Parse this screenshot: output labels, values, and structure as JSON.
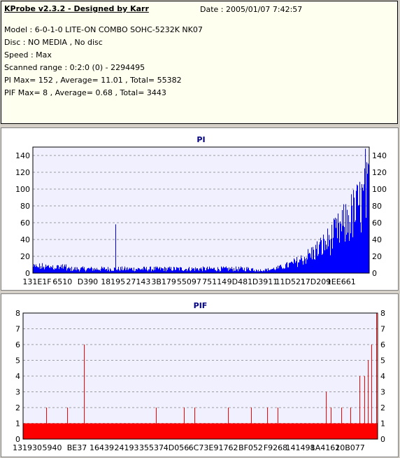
{
  "header": {
    "title": "KProbe v2.3.2 - Designed by Karr",
    "date": "Date : 2005/01/07 7:42:57",
    "lines": [
      "Model : 6-0-1-0 LITE-ON COMBO SOHC-5232K NK07",
      "Disc : NO MEDIA , No disc",
      "Speed : Max",
      "Scanned range : 0:2:0 (0) - 2294495",
      "PI Max= 152 , Average= 11.01 , Total= 55382",
      "PIF Max= 8 , Average= 0.68 , Total= 3443"
    ]
  },
  "chart_data": [
    {
      "type": "bar",
      "title": "PI",
      "ylim": [
        0,
        150
      ],
      "yticks": [
        0,
        20,
        40,
        60,
        80,
        100,
        120,
        140
      ],
      "xticks": [
        "131E1F",
        "6510",
        "D390",
        "18195",
        "27143",
        "3B179",
        "55097",
        "75114",
        "9D481",
        "D3911",
        "11D521",
        "17D209",
        "1EE661"
      ],
      "grid": true,
      "color": "#0000ff",
      "baseline_level": 5,
      "spikes": [
        {
          "x": 0.245,
          "y": 58
        }
      ],
      "ramp": {
        "start_x": 0.66,
        "end_x": 1.0,
        "start_y": 5,
        "end_y": 140
      },
      "max_y": 152
    },
    {
      "type": "bar",
      "title": "PIF",
      "ylim": [
        0,
        8
      ],
      "yticks": [
        0,
        1,
        2,
        3,
        4,
        5,
        6,
        7,
        8
      ],
      "xticks": [
        "131930",
        "5940",
        "BE37",
        "16439",
        "24193",
        "35537",
        "4D056",
        "6C73E",
        "91762",
        "BF052",
        "F9268",
        "141498",
        "1A4161",
        "20B077"
      ],
      "grid": true,
      "color": "#ff0000",
      "baseline_level": 1,
      "spikes": [
        {
          "x": 0.065,
          "y": 2
        },
        {
          "x": 0.125,
          "y": 2
        },
        {
          "x": 0.172,
          "y": 6
        },
        {
          "x": 0.375,
          "y": 2
        },
        {
          "x": 0.455,
          "y": 2
        },
        {
          "x": 0.485,
          "y": 2
        },
        {
          "x": 0.58,
          "y": 2
        },
        {
          "x": 0.645,
          "y": 2
        },
        {
          "x": 0.69,
          "y": 2
        },
        {
          "x": 0.72,
          "y": 2
        },
        {
          "x": 0.855,
          "y": 3
        },
        {
          "x": 0.87,
          "y": 2
        },
        {
          "x": 0.9,
          "y": 2
        },
        {
          "x": 0.925,
          "y": 2
        },
        {
          "x": 0.95,
          "y": 4
        },
        {
          "x": 0.965,
          "y": 4
        },
        {
          "x": 0.975,
          "y": 5
        },
        {
          "x": 0.985,
          "y": 6
        },
        {
          "x": 0.998,
          "y": 8
        }
      ],
      "max_y": 8
    }
  ]
}
